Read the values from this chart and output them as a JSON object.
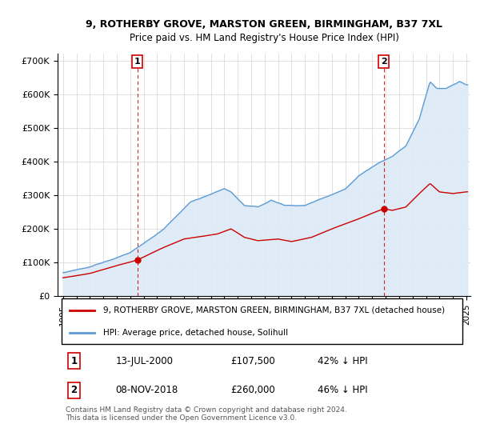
{
  "title1": "9, ROTHERBY GROVE, MARSTON GREEN, BIRMINGHAM, B37 7XL",
  "title2": "Price paid vs. HM Land Registry's House Price Index (HPI)",
  "legend_label1": "9, ROTHERBY GROVE, MARSTON GREEN, BIRMINGHAM, B37 7XL (detached house)",
  "legend_label2": "HPI: Average price, detached house, Solihull",
  "color_property": "#cc0000",
  "color_hpi": "#5b9bd5",
  "color_fill": "#dce9f5",
  "point1_date": "13-JUL-2000",
  "point1_price": 107500,
  "point1_label": "1",
  "point1_hpi_diff": "42% ↓ HPI",
  "point2_date": "08-NOV-2018",
  "point2_price": 260000,
  "point2_label": "2",
  "point2_hpi_diff": "46% ↓ HPI",
  "vline1_x": 2000.53,
  "vline2_x": 2018.86,
  "ylim": [
    0,
    720000
  ],
  "xlim_start": 1994.6,
  "xlim_end": 2025.3,
  "yticks": [
    0,
    100000,
    200000,
    300000,
    400000,
    500000,
    600000,
    700000
  ],
  "ylabels": [
    "£0",
    "£100K",
    "£200K",
    "£300K",
    "£400K",
    "£500K",
    "£600K",
    "£700K"
  ],
  "footer": "Contains HM Land Registry data © Crown copyright and database right 2024.\nThis data is licensed under the Open Government Licence v3.0."
}
